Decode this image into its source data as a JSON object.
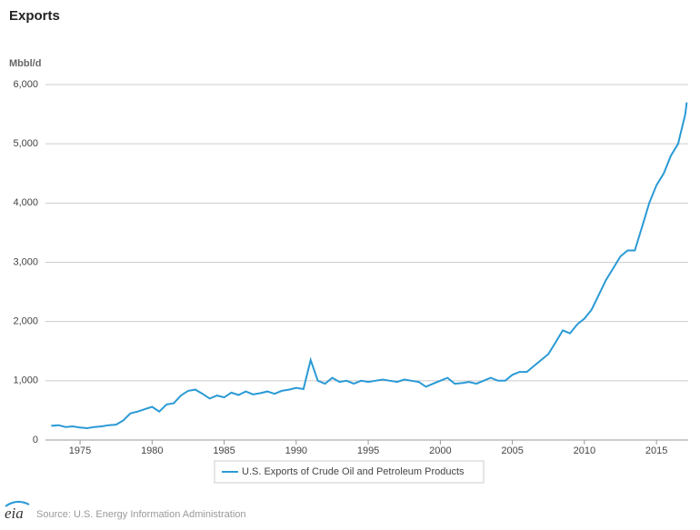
{
  "chart_data": {
    "type": "line",
    "title": "Exports",
    "y_label": "Mbbl/d",
    "source": "Source: U.S. Energy Information Administration",
    "x": [
      1973.0,
      1973.5,
      1974.0,
      1974.5,
      1975.0,
      1975.5,
      1976.0,
      1976.5,
      1977.0,
      1977.5,
      1978.0,
      1978.5,
      1979.0,
      1979.5,
      1980.0,
      1980.5,
      1981.0,
      1981.5,
      1982.0,
      1982.5,
      1983.0,
      1983.5,
      1984.0,
      1984.5,
      1985.0,
      1985.5,
      1986.0,
      1986.5,
      1987.0,
      1987.5,
      1988.0,
      1988.5,
      1989.0,
      1989.5,
      1990.0,
      1990.5,
      1991.0,
      1991.5,
      1992.0,
      1992.5,
      1993.0,
      1993.5,
      1994.0,
      1994.5,
      1995.0,
      1995.5,
      1996.0,
      1996.5,
      1997.0,
      1997.5,
      1998.0,
      1998.5,
      1999.0,
      1999.5,
      2000.0,
      2000.5,
      2001.0,
      2001.5,
      2002.0,
      2002.5,
      2003.0,
      2003.5,
      2004.0,
      2004.5,
      2005.0,
      2005.5,
      2006.0,
      2006.5,
      2007.0,
      2007.5,
      2008.0,
      2008.5,
      2009.0,
      2009.5,
      2010.0,
      2010.5,
      2011.0,
      2011.5,
      2012.0,
      2012.5,
      2013.0,
      2013.5,
      2014.0,
      2014.5,
      2015.0,
      2015.5,
      2016.0,
      2016.5,
      2017.0,
      2017.1
    ],
    "series": [
      {
        "name": "U.S. Exports of Crude Oil and Petroleum Products",
        "color": "#2a9ad6",
        "values": [
          240,
          250,
          220,
          230,
          210,
          200,
          220,
          230,
          250,
          260,
          330,
          450,
          480,
          520,
          560,
          480,
          600,
          620,
          750,
          830,
          850,
          780,
          700,
          750,
          720,
          800,
          760,
          820,
          770,
          790,
          820,
          780,
          830,
          850,
          880,
          860,
          1350,
          1000,
          950,
          1050,
          980,
          1000,
          950,
          1000,
          980,
          1000,
          1020,
          1000,
          980,
          1020,
          1000,
          980,
          900,
          950,
          1000,
          1050,
          950,
          960,
          980,
          950,
          1000,
          1050,
          1000,
          1000,
          1100,
          1150,
          1150,
          1250,
          1350,
          1450,
          1650,
          1850,
          1800,
          1950,
          2050,
          2200,
          2450,
          2700,
          2900,
          3100,
          3200,
          3200,
          3600,
          4000,
          4300,
          4500,
          4800,
          5000,
          5500,
          5700
        ]
      }
    ],
    "xlim": [
      1972.6,
      2017.2
    ],
    "xticks": [
      1975,
      1980,
      1985,
      1990,
      1995,
      2000,
      2005,
      2010,
      2015
    ],
    "ylim": [
      0,
      6000
    ],
    "yticks": [
      0,
      {
        "value": 1000,
        "label": "1,000"
      },
      {
        "value": 2000,
        "label": "2,000"
      },
      {
        "value": 3000,
        "label": "3,000"
      },
      {
        "value": 4000,
        "label": "4,000"
      },
      {
        "value": 5000,
        "label": "5,000"
      },
      {
        "value": 6000,
        "label": "6,000"
      }
    ],
    "grid": true
  }
}
